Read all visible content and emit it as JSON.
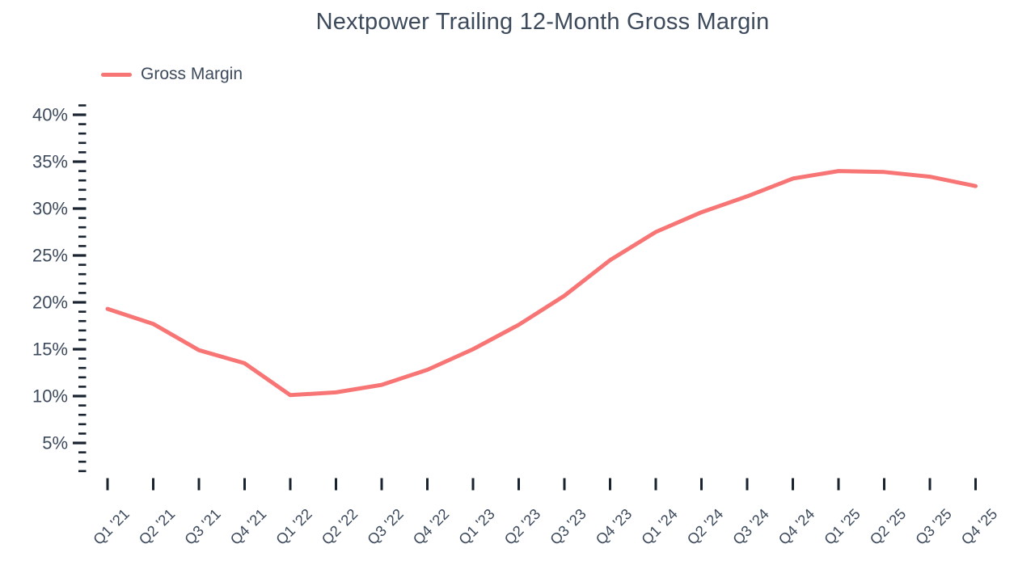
{
  "title": "Nextpower Trailing 12-Month Gross Margin",
  "legend": {
    "label": "Gross Margin"
  },
  "colors": {
    "line": "#f87575",
    "text": "#3d4a5c",
    "tick": "#1a2330"
  },
  "chart_data": {
    "type": "line",
    "title": "Nextpower Trailing 12-Month Gross Margin",
    "categories": [
      "Q1 '21",
      "Q2 '21",
      "Q3 '21",
      "Q4 '21",
      "Q1 '22",
      "Q2 '22",
      "Q3 '22",
      "Q4 '22",
      "Q1 '23",
      "Q2 '23",
      "Q3 '23",
      "Q4 '23",
      "Q1 '24",
      "Q2 '24",
      "Q3 '24",
      "Q4 '24",
      "Q1 '25",
      "Q2 '25",
      "Q3 '25",
      "Q4 '25"
    ],
    "series": [
      {
        "name": "Gross Margin",
        "unit": "%",
        "values": [
          19.3,
          17.7,
          14.9,
          13.5,
          10.1,
          10.4,
          11.2,
          12.8,
          15.0,
          17.6,
          20.7,
          24.5,
          27.5,
          29.6,
          31.3,
          33.2,
          34.0,
          33.9,
          33.4,
          32.4
        ]
      }
    ],
    "xlabel": "",
    "ylabel": "",
    "y_axis": {
      "major_tick_values": [
        5,
        10,
        15,
        20,
        25,
        30,
        35,
        40
      ],
      "major_tick_labels": [
        "5%",
        "10%",
        "15%",
        "20%",
        "25%",
        "30%",
        "35%",
        "40%"
      ],
      "minor_tick_step": 1,
      "minor_tick_range": [
        2,
        41
      ]
    },
    "ylim": [
      2,
      41
    ],
    "grid": false,
    "legend_position": "top-left"
  }
}
